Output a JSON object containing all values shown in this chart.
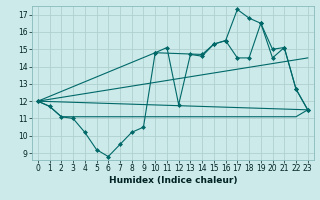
{
  "bg_color": "#cceaea",
  "grid_color": "#b0d0d0",
  "line_color": "#006868",
  "ylim": [
    8.6,
    17.5
  ],
  "xlim": [
    -0.5,
    23.5
  ],
  "yticks": [
    9,
    10,
    11,
    12,
    13,
    14,
    15,
    16,
    17
  ],
  "xticks": [
    0,
    1,
    2,
    3,
    4,
    5,
    6,
    7,
    8,
    9,
    10,
    11,
    12,
    13,
    14,
    15,
    16,
    17,
    18,
    19,
    20,
    21,
    22,
    23
  ],
  "xlabel": "Humidex (Indice chaleur)",
  "series": [
    {
      "x": [
        0,
        1,
        2,
        3,
        4,
        5,
        6,
        7,
        8,
        9,
        10,
        11,
        12,
        13,
        14,
        15,
        16,
        17,
        18,
        19,
        20,
        21,
        22,
        23
      ],
      "y": [
        12,
        11.7,
        11.1,
        11.0,
        10.2,
        9.2,
        8.8,
        9.5,
        10.2,
        10.5,
        14.8,
        15.1,
        11.8,
        14.7,
        14.6,
        15.3,
        15.5,
        14.5,
        14.5,
        16.5,
        14.5,
        15.1,
        12.7,
        11.5
      ],
      "marker": true,
      "line": true
    },
    {
      "x": [
        0,
        23
      ],
      "y": [
        12,
        11.5
      ],
      "marker": false,
      "line": true
    },
    {
      "x": [
        0,
        23
      ],
      "y": [
        12,
        14.5
      ],
      "marker": false,
      "line": true
    },
    {
      "x": [
        0,
        10,
        14,
        15,
        16,
        17,
        18,
        19,
        20,
        21,
        22,
        23
      ],
      "y": [
        12,
        14.8,
        14.7,
        15.3,
        15.5,
        17.3,
        16.8,
        16.5,
        15.0,
        15.1,
        12.7,
        11.5
      ],
      "marker": true,
      "line": true
    },
    {
      "x": [
        0,
        1,
        2,
        3,
        4,
        5,
        6,
        7,
        8,
        9,
        10,
        11,
        12,
        13,
        14,
        15,
        16,
        17,
        18,
        19,
        20,
        21,
        22,
        23
      ],
      "y": [
        12,
        11.7,
        11.1,
        11.1,
        11.1,
        11.1,
        11.1,
        11.1,
        11.1,
        11.1,
        11.1,
        11.1,
        11.1,
        11.1,
        11.1,
        11.1,
        11.1,
        11.1,
        11.1,
        11.1,
        11.1,
        11.1,
        11.1,
        11.5
      ],
      "marker": false,
      "line": true
    }
  ]
}
